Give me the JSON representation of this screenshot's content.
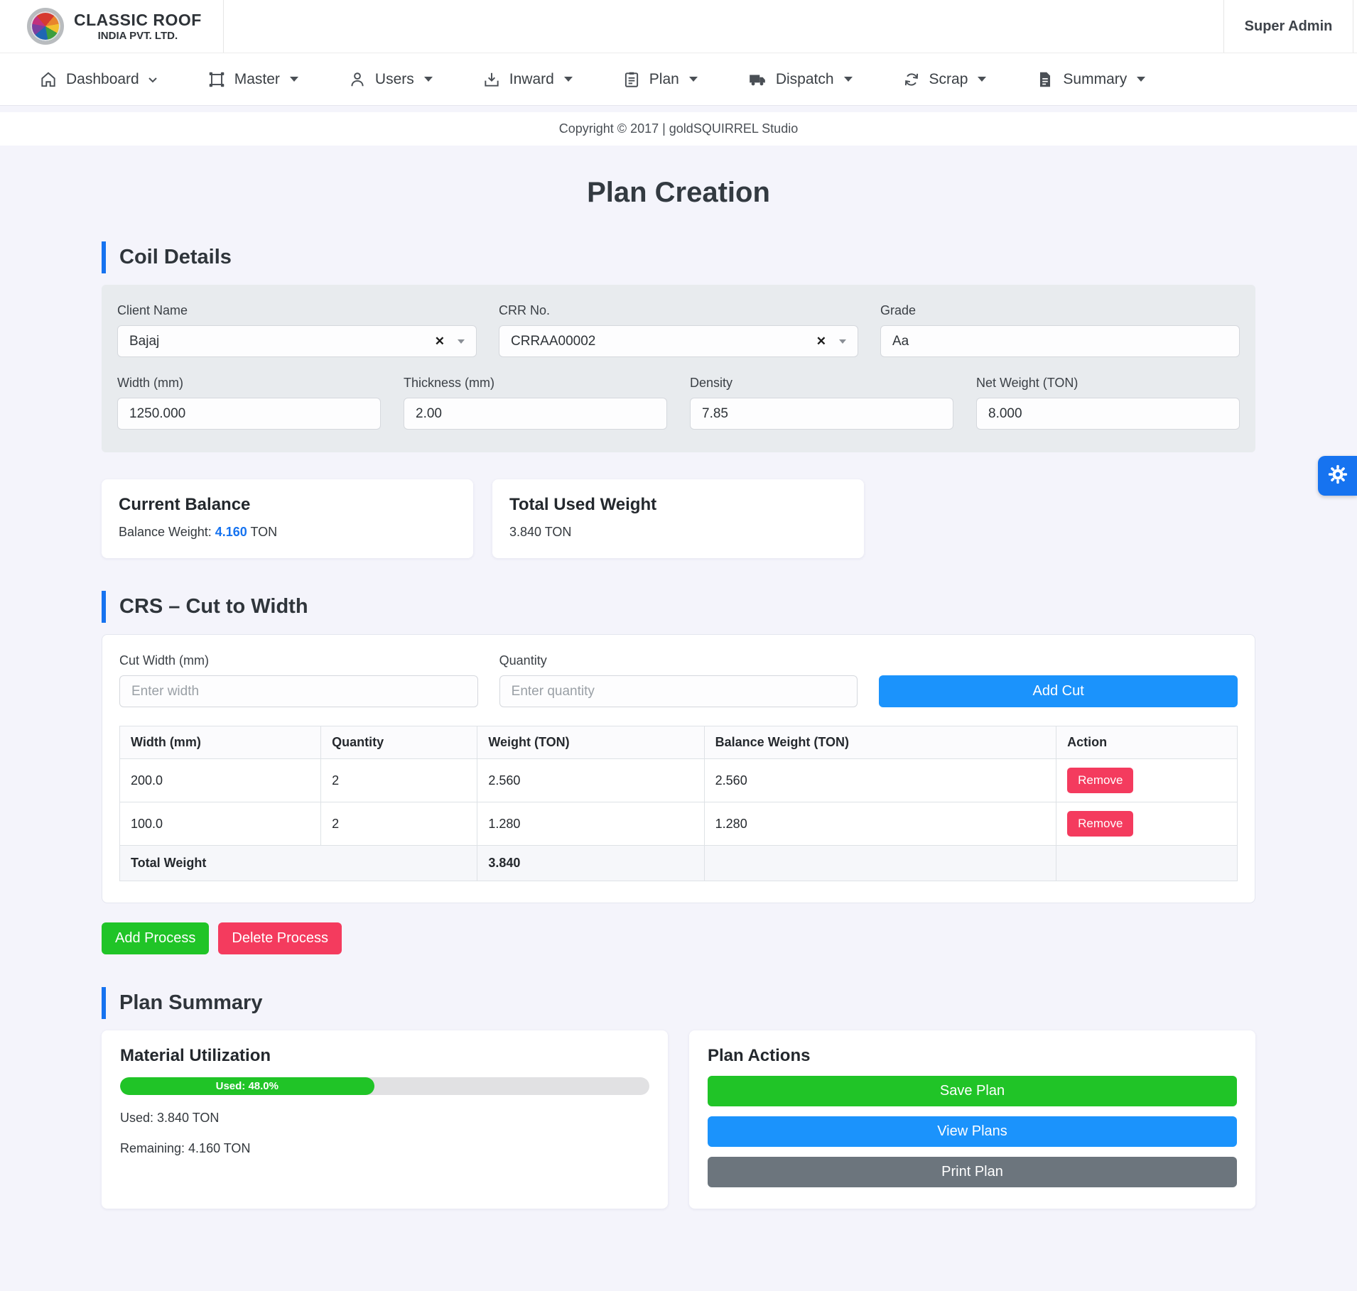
{
  "header": {
    "brand_line1": "CLASSIC ROOF",
    "brand_line2": "INDIA PVT. LTD.",
    "user": "Super Admin"
  },
  "nav": {
    "items": [
      {
        "label": "Dashboard",
        "icon": "home-icon"
      },
      {
        "label": "Master",
        "icon": "selection-icon"
      },
      {
        "label": "Users",
        "icon": "person-icon"
      },
      {
        "label": "Inward",
        "icon": "inward-tray-icon"
      },
      {
        "label": "Plan",
        "icon": "clipboard-icon"
      },
      {
        "label": "Dispatch",
        "icon": "truck-icon"
      },
      {
        "label": "Scrap",
        "icon": "recycle-icon"
      },
      {
        "label": "Summary",
        "icon": "document-icon"
      }
    ]
  },
  "copyright": "Copyright © 2017 | goldSQUIRREL Studio",
  "page_title": "Plan Creation",
  "coil_details": {
    "heading": "Coil Details",
    "fields": {
      "client_name": {
        "label": "Client Name",
        "value": "Bajaj"
      },
      "crr_no": {
        "label": "CRR No.",
        "value": "CRRAA00002"
      },
      "grade": {
        "label": "Grade",
        "value": "Aa"
      },
      "width": {
        "label": "Width (mm)",
        "value": "1250.000"
      },
      "thickness": {
        "label": "Thickness (mm)",
        "value": "2.00"
      },
      "density": {
        "label": "Density",
        "value": "7.85"
      },
      "net_weight": {
        "label": "Net Weight (TON)",
        "value": "8.000"
      }
    }
  },
  "summary_cards": {
    "current_balance": {
      "title": "Current Balance",
      "prefix": "Balance Weight:",
      "value": "4.160",
      "unit": "TON"
    },
    "total_used": {
      "title": "Total Used Weight",
      "value": "3.840 TON"
    }
  },
  "crs": {
    "heading": "CRS – Cut to Width",
    "cut_width_label": "Cut Width (mm)",
    "cut_width_placeholder": "Enter width",
    "quantity_label": "Quantity",
    "quantity_placeholder": "Enter quantity",
    "add_cut_label": "Add Cut",
    "table": {
      "headers": [
        "Width (mm)",
        "Quantity",
        "Weight (TON)",
        "Balance Weight (TON)",
        "Action"
      ],
      "rows": [
        {
          "width": "200.0",
          "quantity": "2",
          "weight": "2.560",
          "balance": "2.560"
        },
        {
          "width": "100.0",
          "quantity": "2",
          "weight": "1.280",
          "balance": "1.280"
        }
      ],
      "remove_label": "Remove",
      "total_label": "Total Weight",
      "total_weight": "3.840"
    }
  },
  "process_buttons": {
    "add": "Add Process",
    "delete": "Delete Process"
  },
  "plan_summary": {
    "heading": "Plan Summary",
    "material": {
      "title": "Material Utilization",
      "progress_label": "Used: 48.0%",
      "progress_pct": 48,
      "used_line": "Used: 3.840 TON",
      "remaining_line": "Remaining: 4.160 TON"
    },
    "actions": {
      "title": "Plan Actions",
      "save_label": "Save Plan",
      "view_label": "View Plans",
      "print_label": "Print Plan"
    }
  },
  "colors": {
    "accent_blue": "#1b93fc",
    "heading_bar_blue": "#1673f0",
    "green": "#20c427",
    "pink": "#f43b5e",
    "gray_button": "#6c757d",
    "page_background": "#f4f4fb",
    "panel_gray": "#e8ebee"
  }
}
